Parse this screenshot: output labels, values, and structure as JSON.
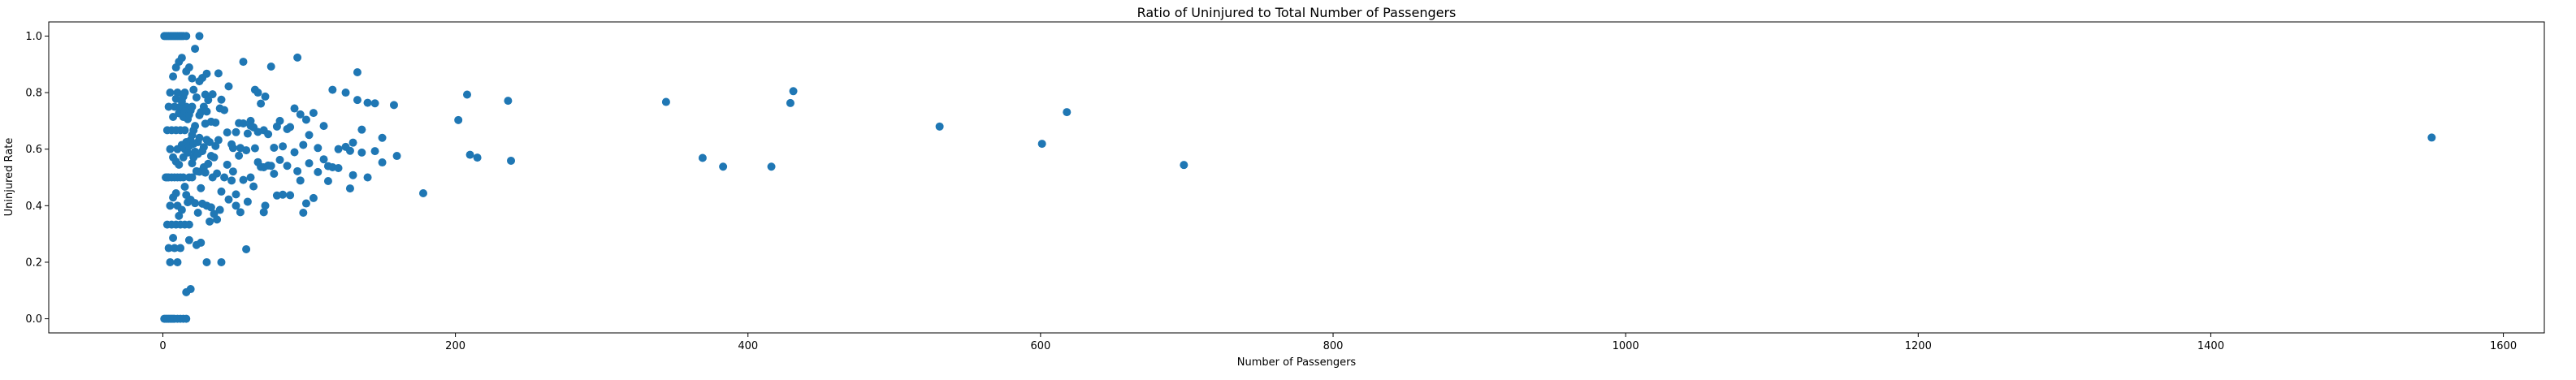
{
  "chart_data": {
    "type": "scatter",
    "title": "Ratio of Uninjured to Total Number of Passengers",
    "xlabel": "Number of Passengers",
    "ylabel": "Uninjured Rate",
    "xlim": [
      -78,
      1628
    ],
    "ylim": [
      -0.05,
      1.05
    ],
    "xticks": [
      0,
      200,
      400,
      600,
      800,
      1000,
      1200,
      1400,
      1600
    ],
    "yticks": [
      0.0,
      0.2,
      0.4,
      0.6,
      0.8,
      1.0
    ],
    "xtick_labels": [
      "0",
      "200",
      "400",
      "600",
      "800",
      "1000",
      "1200",
      "1400",
      "1600"
    ],
    "ytick_labels": [
      "0.0",
      "0.2",
      "0.4",
      "0.6",
      "0.8",
      "1.0"
    ],
    "grid": false,
    "marker_color": "#1f77b4",
    "points": [
      [
        1,
        1.0
      ],
      [
        2,
        1.0
      ],
      [
        3,
        1.0
      ],
      [
        4,
        1.0
      ],
      [
        5,
        1.0
      ],
      [
        6,
        1.0
      ],
      [
        7,
        1.0
      ],
      [
        8,
        1.0
      ],
      [
        9,
        1.0
      ],
      [
        10,
        1.0
      ],
      [
        11,
        1.0
      ],
      [
        12,
        1.0
      ],
      [
        13,
        1.0
      ],
      [
        14,
        1.0
      ],
      [
        16,
        1.0
      ],
      [
        25,
        1.0
      ],
      [
        1,
        0.0
      ],
      [
        2,
        0.0
      ],
      [
        3,
        0.0
      ],
      [
        4,
        0.0
      ],
      [
        5,
        0.0
      ],
      [
        6,
        0.0
      ],
      [
        7,
        0.0
      ],
      [
        8,
        0.0
      ],
      [
        10,
        0.0
      ],
      [
        12,
        0.0
      ],
      [
        14,
        0.0
      ],
      [
        16,
        0.0
      ],
      [
        2,
        0.5
      ],
      [
        3,
        0.5
      ],
      [
        4,
        0.5
      ],
      [
        6,
        0.5
      ],
      [
        8,
        0.5
      ],
      [
        10,
        0.5
      ],
      [
        12,
        0.5
      ],
      [
        14,
        0.5
      ],
      [
        18,
        0.5
      ],
      [
        20,
        0.5
      ],
      [
        3,
        0.333
      ],
      [
        6,
        0.333
      ],
      [
        9,
        0.333
      ],
      [
        12,
        0.333
      ],
      [
        15,
        0.333
      ],
      [
        18,
        0.333
      ],
      [
        3,
        0.667
      ],
      [
        6,
        0.667
      ],
      [
        9,
        0.667
      ],
      [
        12,
        0.667
      ],
      [
        15,
        0.667
      ],
      [
        21,
        0.667
      ],
      [
        4,
        0.25
      ],
      [
        8,
        0.25
      ],
      [
        12,
        0.25
      ],
      [
        4,
        0.75
      ],
      [
        8,
        0.75
      ],
      [
        12,
        0.75
      ],
      [
        16,
        0.75
      ],
      [
        5,
        0.2
      ],
      [
        5,
        0.4
      ],
      [
        5,
        0.6
      ],
      [
        5,
        0.8
      ],
      [
        10,
        0.6
      ],
      [
        10,
        0.8
      ],
      [
        10,
        0.4
      ],
      [
        10,
        0.2
      ],
      [
        7,
        0.571
      ],
      [
        7,
        0.714
      ],
      [
        7,
        0.857
      ],
      [
        7,
        0.429
      ],
      [
        7,
        0.286
      ],
      [
        9,
        0.556
      ],
      [
        9,
        0.778
      ],
      [
        9,
        0.889
      ],
      [
        9,
        0.444
      ],
      [
        11,
        0.545
      ],
      [
        11,
        0.727
      ],
      [
        11,
        0.909
      ],
      [
        11,
        0.364
      ],
      [
        13,
        0.615
      ],
      [
        13,
        0.769
      ],
      [
        13,
        0.923
      ],
      [
        13,
        0.385
      ],
      [
        14,
        0.571
      ],
      [
        14,
        0.786
      ],
      [
        14,
        0.714
      ],
      [
        15,
        0.6
      ],
      [
        15,
        0.8
      ],
      [
        15,
        0.467
      ],
      [
        15,
        0.733
      ],
      [
        16,
        0.625
      ],
      [
        16,
        0.875
      ],
      [
        16,
        0.438
      ],
      [
        16,
        0.094
      ],
      [
        17,
        0.588
      ],
      [
        17,
        0.706
      ],
      [
        17,
        0.412
      ],
      [
        18,
        0.611
      ],
      [
        18,
        0.722
      ],
      [
        18,
        0.278
      ],
      [
        18,
        0.889
      ],
      [
        19,
        0.632
      ],
      [
        19,
        0.737
      ],
      [
        19,
        0.421
      ],
      [
        19,
        0.105
      ],
      [
        20,
        0.65
      ],
      [
        20,
        0.75
      ],
      [
        20,
        0.55
      ],
      [
        20,
        0.85
      ],
      [
        21,
        0.619
      ],
      [
        21,
        0.571
      ],
      [
        21,
        0.81
      ],
      [
        22,
        0.955
      ],
      [
        22,
        0.682
      ],
      [
        22,
        0.409
      ],
      [
        22,
        0.591
      ],
      [
        23,
        0.783
      ],
      [
        23,
        0.522
      ],
      [
        23,
        0.261
      ],
      [
        24,
        0.625
      ],
      [
        24,
        0.583
      ],
      [
        24,
        0.375
      ],
      [
        25,
        0.52
      ],
      [
        25,
        0.84
      ],
      [
        25,
        0.72
      ],
      [
        25,
        0.64
      ],
      [
        26,
        0.731
      ],
      [
        26,
        0.462
      ],
      [
        26,
        0.269
      ],
      [
        27,
        0.593
      ],
      [
        27,
        0.852
      ],
      [
        27,
        0.407
      ],
      [
        28,
        0.536
      ],
      [
        28,
        0.75
      ],
      [
        28,
        0.607
      ],
      [
        29,
        0.69
      ],
      [
        29,
        0.517
      ],
      [
        29,
        0.793
      ],
      [
        30,
        0.633
      ],
      [
        30,
        0.4
      ],
      [
        30,
        0.2
      ],
      [
        30,
        0.733
      ],
      [
        30,
        0.867
      ],
      [
        31,
        0.548
      ],
      [
        31,
        0.774
      ],
      [
        32,
        0.625
      ],
      [
        32,
        0.344
      ],
      [
        33,
        0.576
      ],
      [
        33,
        0.697
      ],
      [
        33,
        0.394
      ],
      [
        34,
        0.794
      ],
      [
        34,
        0.5
      ],
      [
        35,
        0.571
      ],
      [
        35,
        0.371
      ],
      [
        36,
        0.694
      ],
      [
        36,
        0.611
      ],
      [
        37,
        0.514
      ],
      [
        37,
        0.351
      ],
      [
        38,
        0.632
      ],
      [
        38,
        0.868
      ],
      [
        39,
        0.385
      ],
      [
        39,
        0.744
      ],
      [
        40,
        0.45
      ],
      [
        40,
        0.2
      ],
      [
        40,
        0.775
      ],
      [
        42,
        0.5
      ],
      [
        42,
        0.738
      ],
      [
        44,
        0.545
      ],
      [
        44,
        0.659
      ],
      [
        45,
        0.422
      ],
      [
        45,
        0.822
      ],
      [
        47,
        0.617
      ],
      [
        47,
        0.489
      ],
      [
        48,
        0.604
      ],
      [
        48,
        0.521
      ],
      [
        50,
        0.66
      ],
      [
        50,
        0.4
      ],
      [
        50,
        0.44
      ],
      [
        52,
        0.692
      ],
      [
        52,
        0.577
      ],
      [
        53,
        0.377
      ],
      [
        53,
        0.604
      ],
      [
        55,
        0.691
      ],
      [
        55,
        0.491
      ],
      [
        55,
        0.909
      ],
      [
        57,
        0.246
      ],
      [
        57,
        0.596
      ],
      [
        58,
        0.414
      ],
      [
        58,
        0.655
      ],
      [
        60,
        0.5
      ],
      [
        60,
        0.7
      ],
      [
        60,
        0.683
      ],
      [
        62,
        0.677
      ],
      [
        62,
        0.468
      ],
      [
        63,
        0.81
      ],
      [
        63,
        0.603
      ],
      [
        65,
        0.661
      ],
      [
        65,
        0.8
      ],
      [
        65,
        0.554
      ],
      [
        67,
        0.537
      ],
      [
        67,
        0.761
      ],
      [
        69,
        0.536
      ],
      [
        69,
        0.377
      ],
      [
        69,
        0.667
      ],
      [
        70,
        0.4
      ],
      [
        70,
        0.786
      ],
      [
        72,
        0.542
      ],
      [
        72,
        0.653
      ],
      [
        74,
        0.892
      ],
      [
        74,
        0.541
      ],
      [
        76,
        0.605
      ],
      [
        76,
        0.513
      ],
      [
        78,
        0.68
      ],
      [
        78,
        0.436
      ],
      [
        80,
        0.562
      ],
      [
        80,
        0.7
      ],
      [
        82,
        0.439
      ],
      [
        82,
        0.61
      ],
      [
        85,
        0.671
      ],
      [
        85,
        0.541
      ],
      [
        87,
        0.437
      ],
      [
        87,
        0.678
      ],
      [
        90,
        0.744
      ],
      [
        90,
        0.589
      ],
      [
        92,
        0.522
      ],
      [
        92,
        0.924
      ],
      [
        94,
        0.489
      ],
      [
        94,
        0.723
      ],
      [
        96,
        0.615
      ],
      [
        96,
        0.375
      ],
      [
        98,
        0.704
      ],
      [
        98,
        0.408
      ],
      [
        100,
        0.55
      ],
      [
        100,
        0.65
      ],
      [
        103,
        0.728
      ],
      [
        103,
        0.427
      ],
      [
        106,
        0.604
      ],
      [
        106,
        0.519
      ],
      [
        110,
        0.564
      ],
      [
        110,
        0.682
      ],
      [
        113,
        0.487
      ],
      [
        113,
        0.54
      ],
      [
        116,
        0.536
      ],
      [
        116,
        0.81
      ],
      [
        120,
        0.533
      ],
      [
        120,
        0.6
      ],
      [
        125,
        0.8
      ],
      [
        125,
        0.608
      ],
      [
        128,
        0.461
      ],
      [
        128,
        0.594
      ],
      [
        130,
        0.508
      ],
      [
        130,
        0.623
      ],
      [
        133,
        0.872
      ],
      [
        133,
        0.774
      ],
      [
        136,
        0.669
      ],
      [
        136,
        0.588
      ],
      [
        140,
        0.764
      ],
      [
        140,
        0.5
      ],
      [
        145,
        0.593
      ],
      [
        145,
        0.762
      ],
      [
        150,
        0.553
      ],
      [
        150,
        0.64
      ],
      [
        158,
        0.756
      ],
      [
        160,
        0.576
      ],
      [
        178,
        0.444
      ],
      [
        202,
        0.703
      ],
      [
        208,
        0.793
      ],
      [
        210,
        0.58
      ],
      [
        215,
        0.57
      ],
      [
        236,
        0.771
      ],
      [
        238,
        0.559
      ],
      [
        344,
        0.767
      ],
      [
        369,
        0.569
      ],
      [
        383,
        0.538
      ],
      [
        416,
        0.538
      ],
      [
        429,
        0.763
      ],
      [
        431,
        0.805
      ],
      [
        531,
        0.68
      ],
      [
        601,
        0.619
      ],
      [
        618,
        0.731
      ],
      [
        698,
        0.544
      ],
      [
        1551,
        0.641
      ]
    ]
  }
}
